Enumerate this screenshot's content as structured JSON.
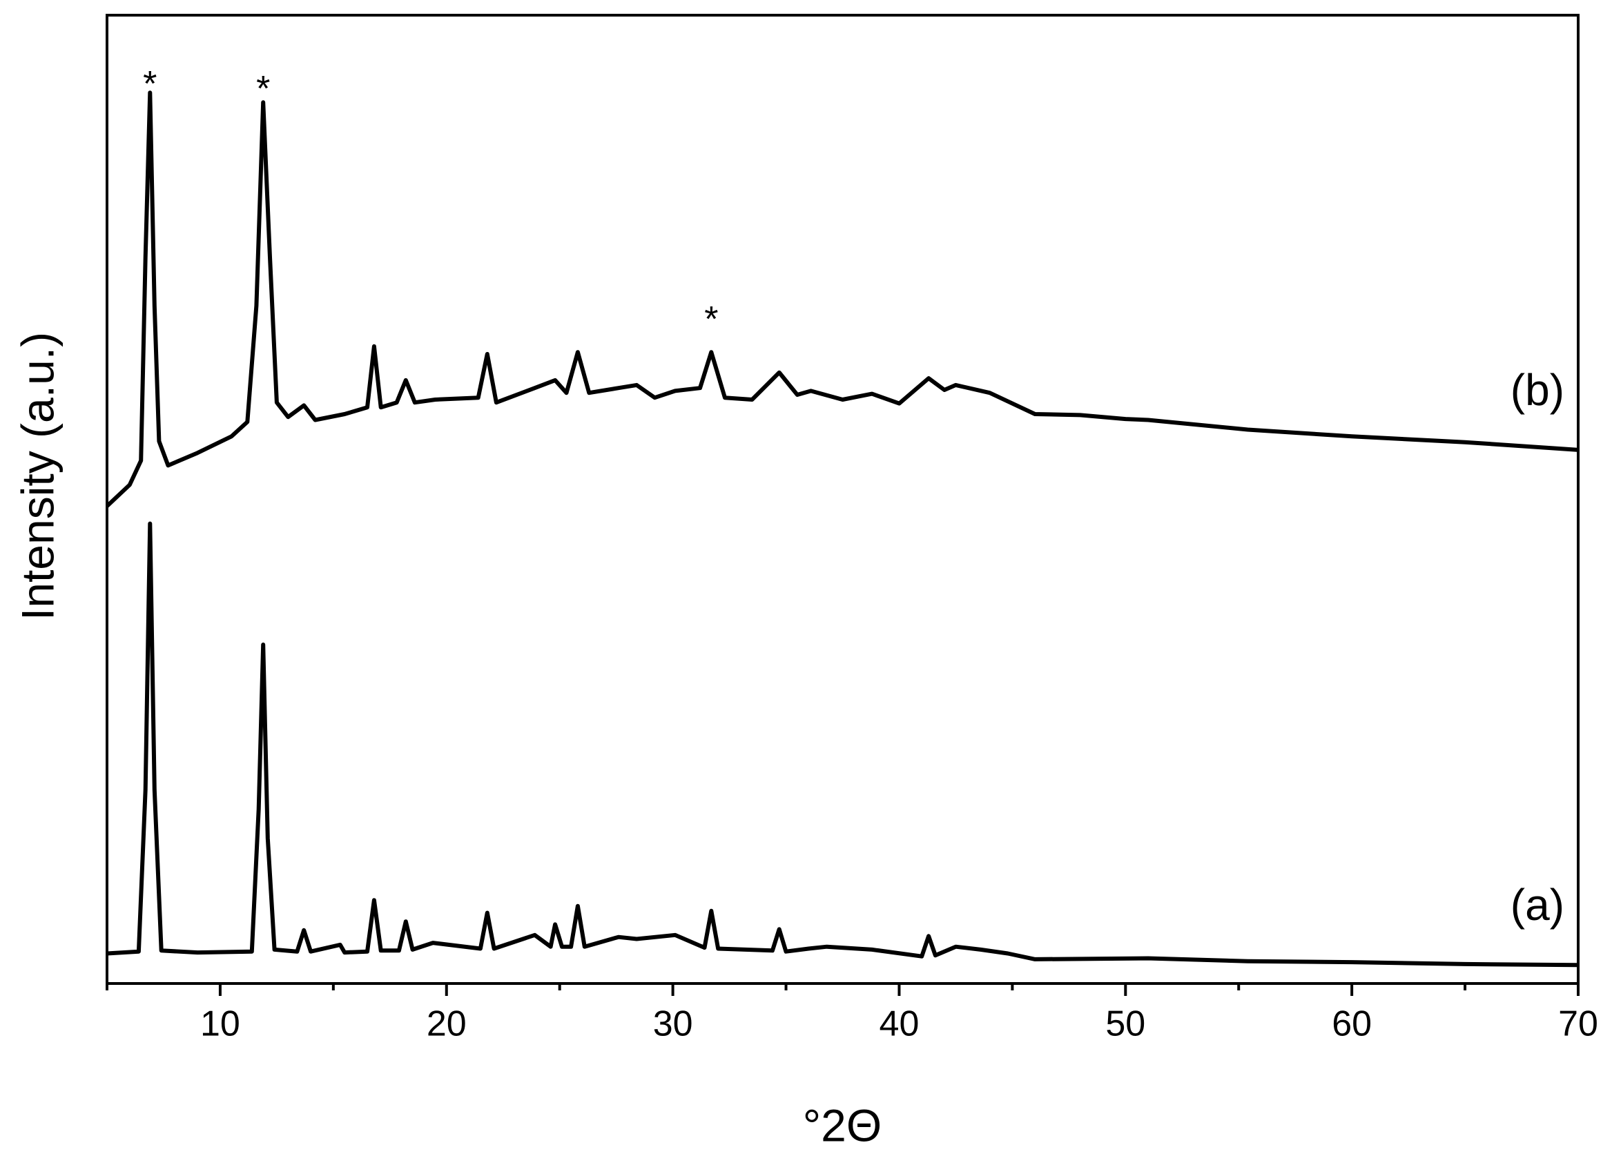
{
  "chart_data": {
    "type": "line",
    "x_label": "°2Θ",
    "y_label": "Intensity (a.u.)",
    "xlim": [
      5,
      70
    ],
    "ylim": [
      0,
      100
    ],
    "xticks": [
      10,
      20,
      30,
      40,
      50,
      60,
      70
    ],
    "xminorticks": [
      5,
      15,
      25,
      35,
      45,
      55,
      65
    ],
    "series": [
      {
        "name": "(a)",
        "color": "#000000",
        "x": [
          5,
          6.4,
          6.7,
          6.9,
          7.1,
          7.4,
          9,
          11.4,
          11.7,
          11.9,
          12.1,
          12.4,
          13.4,
          13.7,
          14,
          15.3,
          15.5,
          16.5,
          16.8,
          17.1,
          17.9,
          18.2,
          18.5,
          19.4,
          21.5,
          21.8,
          22.1,
          23.9,
          24.6,
          24.8,
          25.1,
          25.5,
          25.8,
          26.1,
          27.6,
          28.4,
          30.1,
          31.4,
          31.7,
          32,
          34.4,
          34.7,
          35,
          36,
          36.8,
          38.8,
          41,
          41.3,
          41.6,
          42.5,
          43.6,
          44.8,
          46,
          51,
          55.4,
          60,
          65,
          70
        ],
        "values": [
          3.1,
          3.3,
          20,
          47.5,
          20,
          3.4,
          3.2,
          3.3,
          18,
          35.0,
          15,
          3.5,
          3.3,
          5.5,
          3.3,
          4.0,
          3.2,
          3.3,
          8.6,
          3.4,
          3.4,
          6.4,
          3.5,
          4.2,
          3.6,
          7.3,
          3.6,
          5.0,
          3.8,
          6.1,
          3.8,
          3.8,
          8.0,
          3.8,
          4.8,
          4.6,
          5.0,
          3.7,
          7.5,
          3.6,
          3.4,
          5.6,
          3.3,
          3.6,
          3.8,
          3.5,
          2.8,
          4.9,
          2.9,
          3.8,
          3.5,
          3.1,
          2.5,
          2.6,
          2.3,
          2.2,
          2.0,
          1.9
        ]
      },
      {
        "name": "(b)",
        "color": "#000000",
        "x": [
          5,
          6,
          6.5,
          6.7,
          6.9,
          7.1,
          7.3,
          7.7,
          9,
          10.5,
          11.2,
          11.6,
          11.9,
          12.2,
          12.5,
          13,
          13.7,
          14.2,
          15.5,
          16.5,
          16.8,
          17.1,
          17.8,
          18.2,
          18.6,
          19.5,
          21.4,
          21.8,
          22.2,
          23.9,
          24.8,
          25.3,
          25.8,
          26.3,
          27.6,
          28.4,
          29.2,
          30.1,
          31.2,
          31.7,
          32.3,
          33.5,
          34.7,
          35.5,
          36.1,
          37.5,
          38.8,
          40,
          41.3,
          42,
          42.5,
          44,
          46,
          48,
          50,
          51,
          55.4,
          60,
          65,
          70
        ],
        "values": [
          49.3,
          51.5,
          54,
          75,
          92.0,
          70,
          56,
          53.5,
          54.8,
          56.5,
          58,
          70,
          91.0,
          75,
          60,
          58.5,
          59.7,
          58.2,
          58.8,
          59.5,
          65.8,
          59.5,
          60,
          62.3,
          60,
          60.3,
          60.5,
          65.0,
          60,
          61.5,
          62.3,
          61,
          65.2,
          61,
          61.5,
          61.8,
          60.5,
          61.2,
          61.5,
          65.2,
          60.5,
          60.3,
          63.1,
          60.8,
          61.2,
          60.3,
          60.9,
          59.9,
          62.5,
          61.3,
          61.8,
          61,
          58.8,
          58.7,
          58.3,
          58.2,
          57.2,
          56.5,
          55.9,
          55.1
        ]
      }
    ],
    "annotations": [
      {
        "text": "*",
        "x": 6.9,
        "y": 93.5
      },
      {
        "text": "*",
        "x": 11.9,
        "y": 93
      },
      {
        "text": "*",
        "x": 31.7,
        "y": 69.2
      }
    ]
  }
}
